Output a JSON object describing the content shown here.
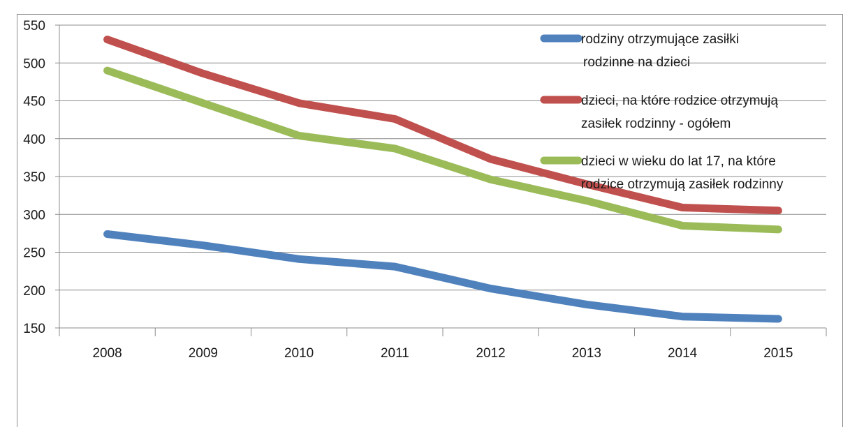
{
  "chart_data": {
    "type": "line",
    "title": "",
    "xlabel": "",
    "ylabel": "",
    "categories": [
      "2008",
      "2009",
      "2010",
      "2011",
      "2012",
      "2013",
      "2014",
      "2015"
    ],
    "ylim": [
      150,
      550
    ],
    "yticks": [
      "150",
      "200",
      "250",
      "300",
      "350",
      "400",
      "450",
      "500",
      "550"
    ],
    "grid": "horizontal",
    "legend_position": "top-right",
    "series": [
      {
        "name_lines": [
          "rodziny otrzymujące zasiłki",
          "rodzinne na dzieci"
        ],
        "color": "#4f81bd",
        "values": [
          274,
          259,
          241,
          231,
          202,
          181,
          165,
          162
        ]
      },
      {
        "name_lines": [
          "dzieci, na które rodzice otrzymują",
          "zasiłek rodzinny - ogółem"
        ],
        "color": "#c0504d",
        "values": [
          531,
          486,
          447,
          426,
          373,
          340,
          309,
          305
        ]
      },
      {
        "name_lines": [
          "dzieci w wieku do lat 17, na które",
          "rodzice otrzymują zasiłek rodzinny"
        ],
        "color": "#9bbb59",
        "values": [
          490,
          447,
          404,
          387,
          346,
          318,
          285,
          280
        ]
      }
    ]
  }
}
